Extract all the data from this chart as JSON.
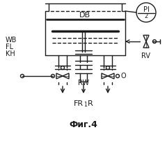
{
  "title": "Фиг.4",
  "label_DB": "DB",
  "label_WB": "WB",
  "label_FL": "FL",
  "label_KH": "KH",
  "label_RW": "RW",
  "label_RV": "RV",
  "label_PI": "PI",
  "label_PI_sub": "2",
  "label_FR": "FR",
  "label_R": "R",
  "label_O": "O",
  "bg_color": "#ffffff",
  "line_color": "#1a1a1a",
  "fig_width": 2.4,
  "fig_height": 2.04,
  "dpi": 100
}
